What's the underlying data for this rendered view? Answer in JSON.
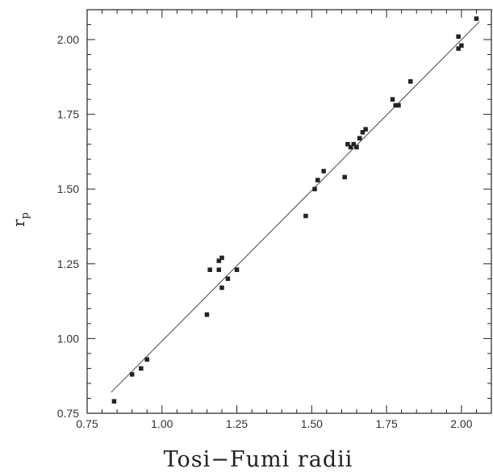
{
  "chart_data": {
    "type": "scatter",
    "title": "",
    "xlabel": "Tosi−Fumi radii",
    "ylabel_main": "r",
    "ylabel_sub": "p",
    "xlim": [
      0.75,
      2.1
    ],
    "ylim": [
      0.75,
      2.1
    ],
    "x_ticks": [
      0.75,
      1.0,
      1.25,
      1.5,
      1.75,
      2.0
    ],
    "x_tick_labels": [
      "0.75",
      "1.00",
      "1.25",
      "1.50",
      "1.75",
      "2.00"
    ],
    "y_ticks": [
      0.75,
      1.0,
      1.25,
      1.5,
      1.75,
      2.0
    ],
    "y_tick_labels": [
      "0.75",
      "1.00",
      "1.25",
      "1.50",
      "1.75",
      "2.00"
    ],
    "grid": false,
    "fit_line": {
      "x": [
        0.83,
        2.06
      ],
      "y": [
        0.82,
        2.06
      ]
    },
    "series": [
      {
        "points": [
          [
            0.84,
            0.79
          ],
          [
            0.9,
            0.88
          ],
          [
            0.93,
            0.9
          ],
          [
            0.95,
            0.93
          ],
          [
            1.15,
            1.08
          ],
          [
            1.16,
            1.23
          ],
          [
            1.19,
            1.23
          ],
          [
            1.19,
            1.26
          ],
          [
            1.2,
            1.27
          ],
          [
            1.2,
            1.17
          ],
          [
            1.22,
            1.2
          ],
          [
            1.25,
            1.23
          ],
          [
            1.48,
            1.41
          ],
          [
            1.51,
            1.5
          ],
          [
            1.52,
            1.53
          ],
          [
            1.54,
            1.56
          ],
          [
            1.61,
            1.54
          ],
          [
            1.62,
            1.65
          ],
          [
            1.63,
            1.64
          ],
          [
            1.64,
            1.65
          ],
          [
            1.65,
            1.64
          ],
          [
            1.66,
            1.67
          ],
          [
            1.67,
            1.69
          ],
          [
            1.68,
            1.7
          ],
          [
            1.77,
            1.8
          ],
          [
            1.78,
            1.78
          ],
          [
            1.79,
            1.78
          ],
          [
            1.83,
            1.86
          ],
          [
            1.99,
            2.01
          ],
          [
            1.99,
            1.97
          ],
          [
            2.0,
            1.98
          ],
          [
            2.05,
            2.07
          ]
        ]
      }
    ]
  }
}
